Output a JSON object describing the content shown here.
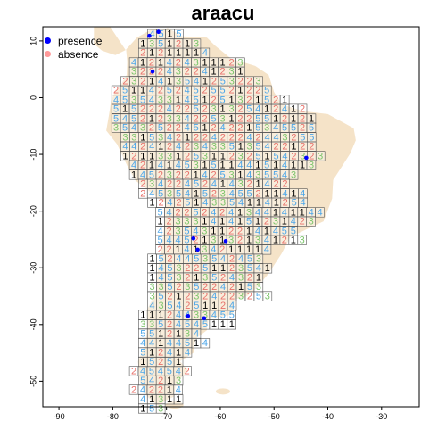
{
  "title": "araacu",
  "legend": {
    "items": [
      {
        "label": "presence",
        "color": "#0000ff"
      },
      {
        "label": "absence",
        "color": "#ff9999"
      }
    ]
  },
  "axes": {
    "x_ticks": [
      -90,
      -80,
      -70,
      -60,
      -50,
      -40,
      -30
    ],
    "y_ticks": [
      10,
      0,
      -10,
      -20,
      -30,
      -40,
      -50
    ],
    "xlim": [
      -93,
      -23
    ],
    "ylim": [
      -54.5,
      12.5
    ]
  },
  "colors": {
    "land": "#f5e3c8",
    "cell_border": "#555555",
    "num_1": "#000000",
    "num_2": "#e8706a",
    "num_3": "#7cc46b",
    "num_4": "#4da6e8",
    "num_5": "#4da6e8"
  },
  "grid": {
    "cell_deg": 1.65,
    "rows": [
      {
        "lat": 11.2,
        "x0": -73.5,
        "digits": "4515"
      },
      {
        "lat": 9.5,
        "x0": -75.2,
        "digits": "1351213"
      },
      {
        "lat": 7.9,
        "x0": -75.2,
        "digits": "21211114"
      },
      {
        "lat": 6.2,
        "x0": -76.9,
        "digits": "4121424311123"
      },
      {
        "lat": 4.6,
        "x0": -76.9,
        "digits": "3222432241231"
      },
      {
        "lat": 2.9,
        "x0": -78.5,
        "digits": "2321413541253223"
      },
      {
        "lat": 1.3,
        "x0": -80.2,
        "digits": "251142524525521225"
      },
      {
        "lat": -0.4,
        "x0": -80.2,
        "digits": "45354331451251321521"
      },
      {
        "lat": -2.0,
        "x0": -80.2,
        "digits": "5152224225231325412412"
      },
      {
        "lat": -3.7,
        "x0": -80.2,
        "digits": "54521233422531225512121"
      },
      {
        "lat": -5.3,
        "x0": -80.2,
        "digits": "35432522451242215345525"
      },
      {
        "lat": -7.0,
        "x0": -78.5,
        "digits": "3315342122422242443255"
      },
      {
        "lat": -8.6,
        "x0": -78.5,
        "digits": "4424124234335135422122"
      },
      {
        "lat": -10.3,
        "x0": -78.5,
        "digits": "12113312531123251542323"
      },
      {
        "lat": -11.9,
        "x0": -76.9,
        "digits": "421414531511441514113"
      },
      {
        "lat": -13.6,
        "x0": -76.9,
        "digits": "1452322142531435543"
      },
      {
        "lat": -15.2,
        "x0": -75.2,
        "digits": "23422452414321422"
      },
      {
        "lat": -16.9,
        "x0": -75.2,
        "digits": "2453541523455211414"
      },
      {
        "lat": -18.5,
        "x0": -73.5,
        "digits": "124251433541141254"
      },
      {
        "lat": -20.2,
        "x0": -72.0,
        "digits": "5422524241344141144"
      },
      {
        "lat": -21.8,
        "x0": -72.0,
        "digits": "123331414151231423"
      },
      {
        "lat": -23.5,
        "x0": -72.0,
        "digits": "4235431122141455"
      },
      {
        "lat": -25.1,
        "x0": -72.0,
        "digits": "54452131321341213"
      },
      {
        "lat": -26.8,
        "x0": -72.0,
        "digits": "2214134211114"
      },
      {
        "lat": -28.4,
        "x0": -73.5,
        "digits": "1524453542453"
      },
      {
        "lat": -30.1,
        "x0": -73.5,
        "digits": "14532251123541"
      },
      {
        "lat": -31.7,
        "x0": -73.5,
        "digits": "1453213524321"
      },
      {
        "lat": -33.4,
        "x0": -73.5,
        "digits": "3352352242153"
      },
      {
        "lat": -35.0,
        "x0": -73.5,
        "digits": "35212324223253"
      },
      {
        "lat": -36.7,
        "x0": -73.5,
        "digits": "4354251124"
      },
      {
        "lat": -38.3,
        "x0": -75.2,
        "digits": "11124433455"
      },
      {
        "lat": -40.0,
        "x0": -75.2,
        "digits": "33524545111"
      },
      {
        "lat": -41.6,
        "x0": -75.2,
        "digits": "5512134"
      },
      {
        "lat": -43.3,
        "x0": -75.2,
        "digits": "44144514"
      },
      {
        "lat": -44.9,
        "x0": -75.2,
        "digits": "512414"
      },
      {
        "lat": -46.6,
        "x0": -75.2,
        "digits": "15251"
      },
      {
        "lat": -48.2,
        "x0": -76.9,
        "digits": "2454542"
      },
      {
        "lat": -49.9,
        "x0": -75.2,
        "digits": "54213"
      },
      {
        "lat": -51.5,
        "x0": -76.9,
        "digits": "242214"
      },
      {
        "lat": -53.2,
        "x0": -75.2,
        "digits": "41311"
      },
      {
        "lat": -54.8,
        "x0": -75.2,
        "digits": "153"
      }
    ]
  },
  "presence_points": [
    {
      "lon": -71.5,
      "lat": 11.6
    },
    {
      "lon": -73.2,
      "lat": 10.9
    },
    {
      "lon": -72.6,
      "lat": 4.6
    },
    {
      "lon": -65.0,
      "lat": -24.8
    },
    {
      "lon": -59.0,
      "lat": -25.3
    },
    {
      "lon": -64.2,
      "lat": -26.8
    },
    {
      "lon": -66.0,
      "lat": -38.5
    },
    {
      "lon": -63.0,
      "lat": -38.9
    },
    {
      "lon": -44.0,
      "lat": -10.6
    }
  ]
}
